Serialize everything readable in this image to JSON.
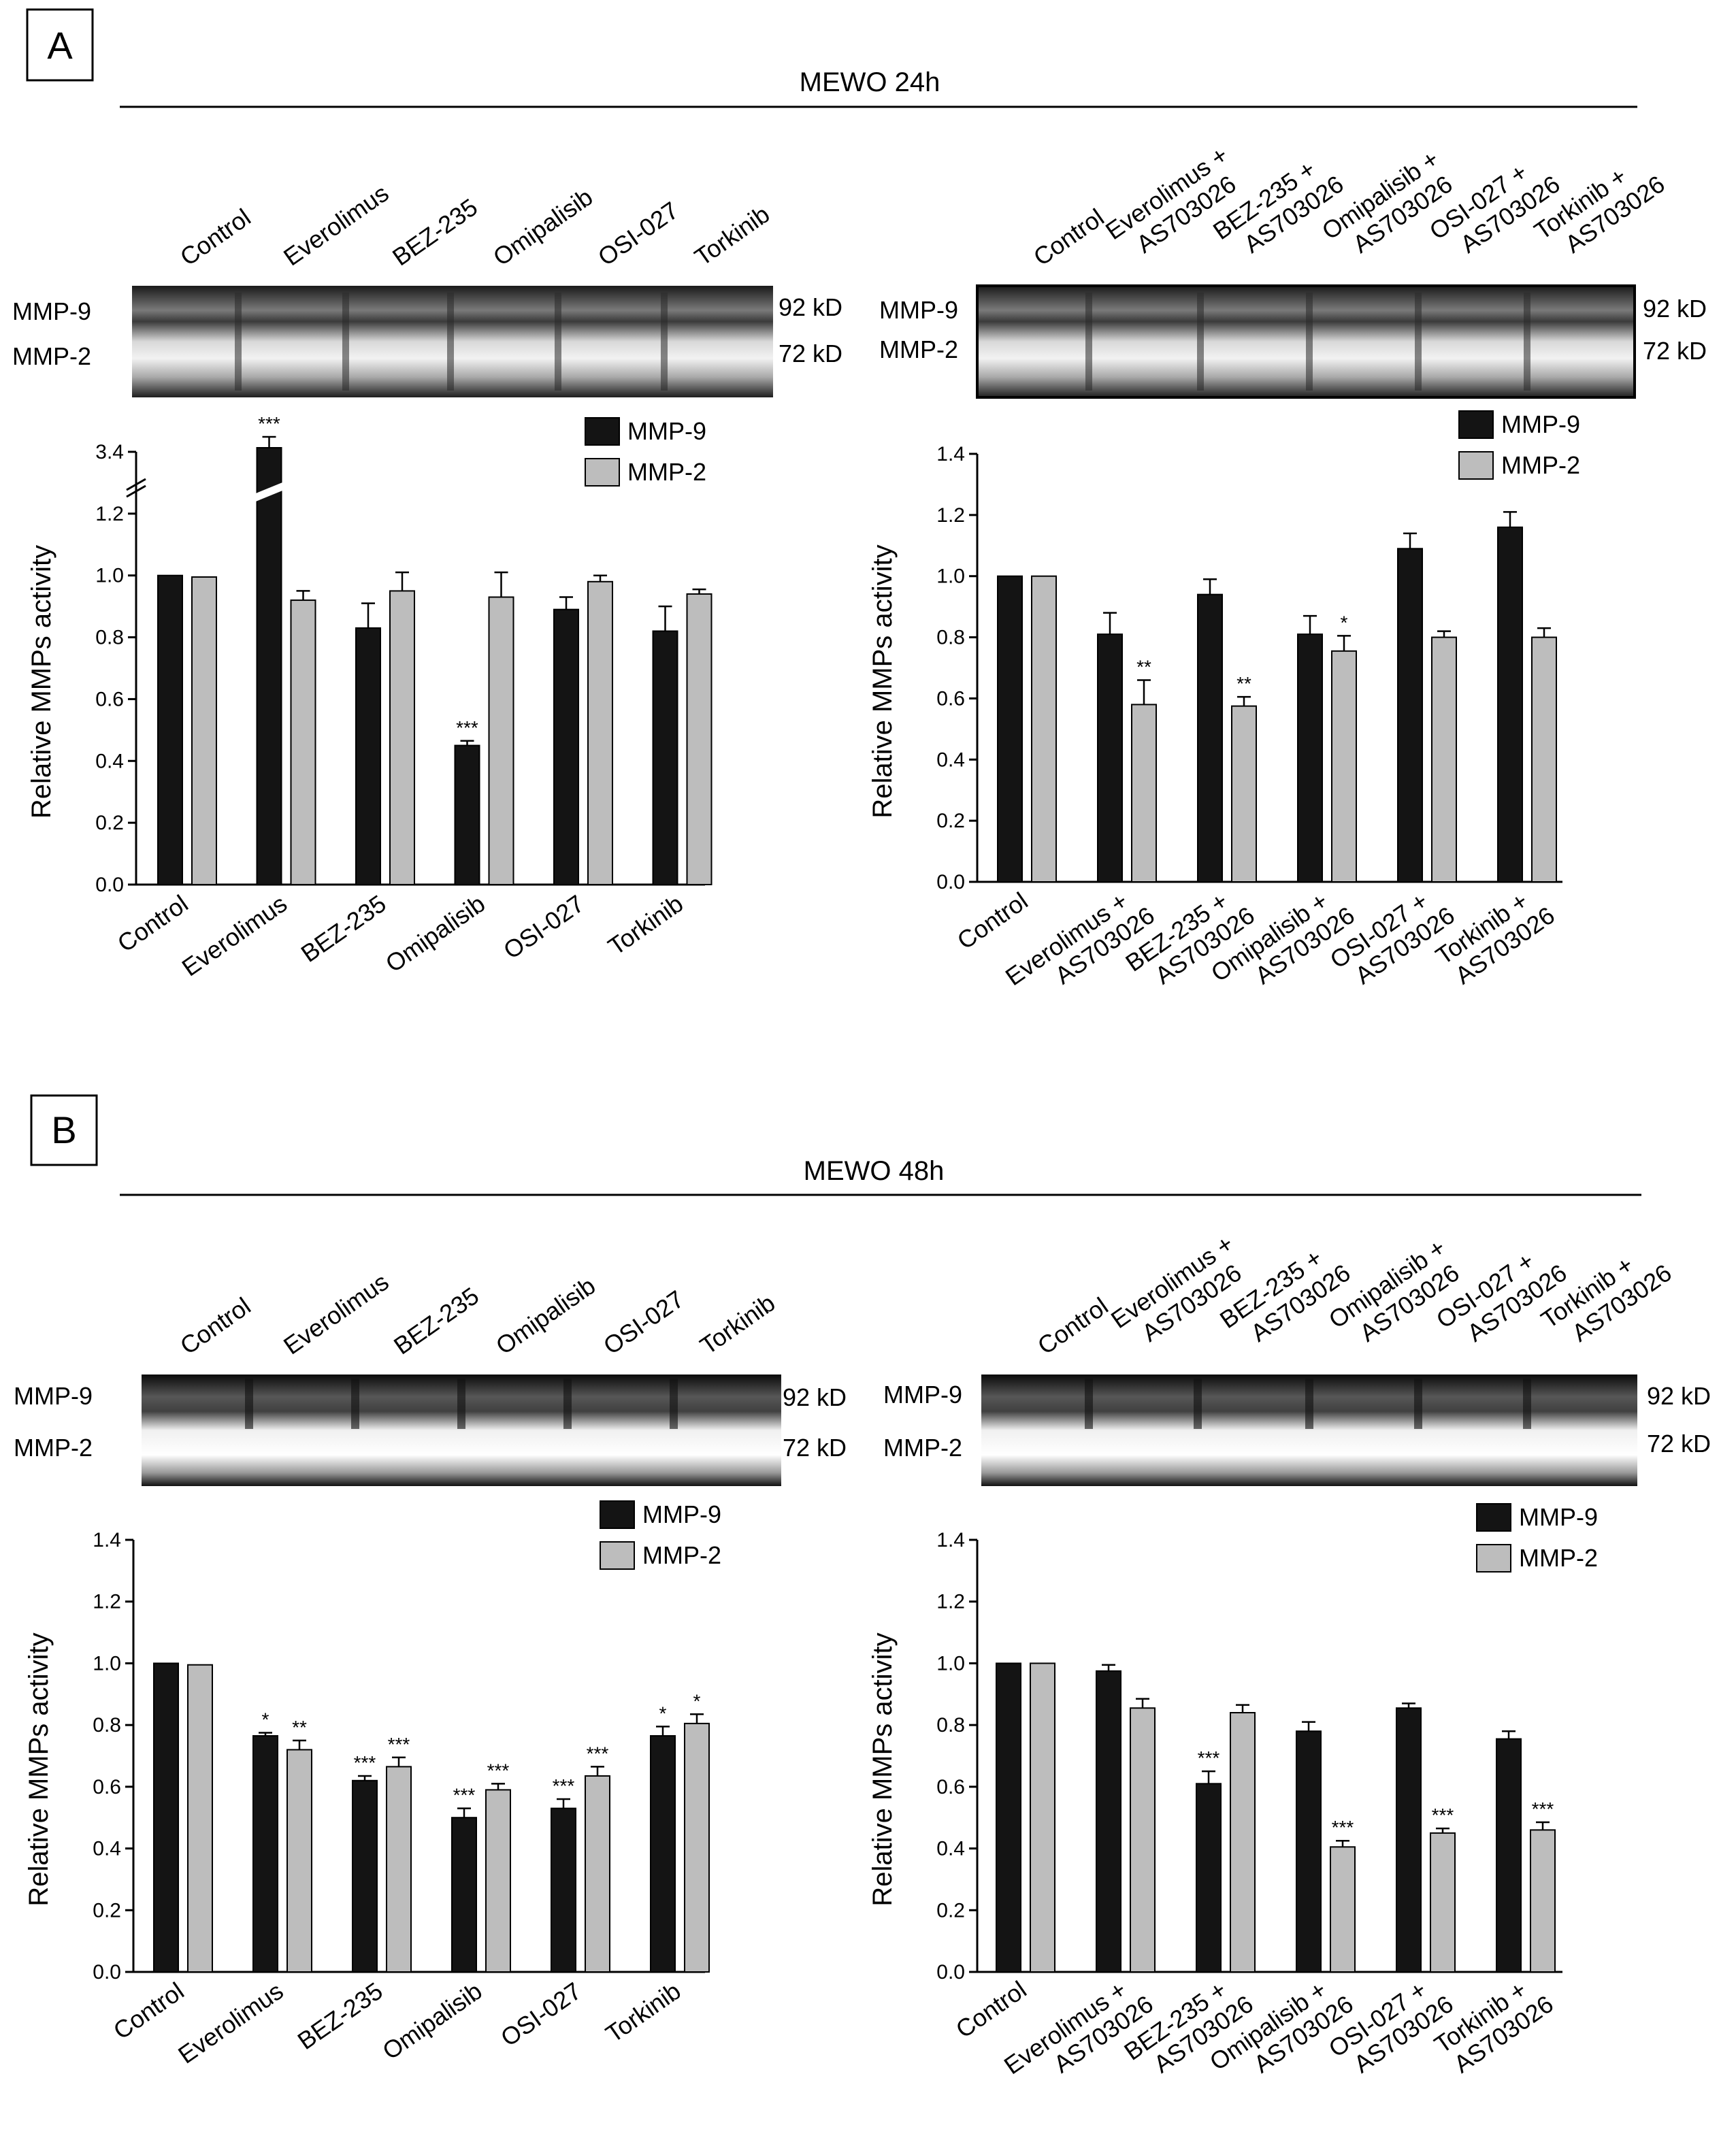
{
  "colors": {
    "mmp9": "#141414",
    "mmp2": "#bdbdbd",
    "axis": "#000000",
    "error": "#000000"
  },
  "panels": [
    {
      "letter": "A",
      "title": "MEWO 24h",
      "gels": [
        {
          "lanes": [
            "Control",
            "Everolimus",
            "BEZ-235",
            "Omipalisib",
            "OSI-027",
            "Torkinib"
          ],
          "band_left": [
            "MMP-9",
            "MMP-2"
          ],
          "band_right": [
            "92 kD",
            "72 kD"
          ]
        },
        {
          "lanes": [
            "Control",
            "Everolimus +\nAS703026",
            "BEZ-235 +\nAS703026",
            "Omipalisib +\nAS703026",
            "OSI-027 +\nAS703026",
            "Torkinib +\nAS703026"
          ],
          "band_left": [
            "MMP-9",
            "MMP-2"
          ],
          "band_right": [
            "92 kD",
            "72 kD"
          ]
        }
      ]
    },
    {
      "letter": "B",
      "title": "MEWO 48h",
      "gels": [
        {
          "lanes": [
            "Control",
            "Everolimus",
            "BEZ-235",
            "Omipalisib",
            "OSI-027",
            "Torkinib"
          ],
          "band_left": [
            "MMP-9",
            "MMP-2"
          ],
          "band_right": [
            "92 kD",
            "72 kD"
          ]
        },
        {
          "lanes": [
            "Control",
            "Everolimus +\nAS703026",
            "BEZ-235 +\nAS703026",
            "Omipalisib +\nAS703026",
            "OSI-027 +\nAS703026",
            "Torkinib +\nAS703026"
          ],
          "band_left": [
            "MMP-9",
            "MMP-2"
          ],
          "band_right": [
            "92 kD",
            "72 kD"
          ]
        }
      ]
    }
  ],
  "chart_data": [
    {
      "panel": "A",
      "type": "bar",
      "ylabel": "Relative MMPs activity",
      "ylim": [
        0,
        1.4
      ],
      "yticks": [
        0.0,
        0.2,
        0.4,
        0.6,
        0.8,
        1.0,
        1.2
      ],
      "axis_break": {
        "label": "3.4",
        "above": 1.2
      },
      "categories": [
        "Control",
        "Everolimus",
        "BEZ-235",
        "Omipalisib",
        "OSI-027",
        "Torkinib"
      ],
      "series": [
        {
          "name": "MMP-9",
          "values": [
            1.0,
            3.4,
            0.83,
            0.45,
            0.89,
            0.82
          ],
          "errors": [
            0,
            0.05,
            0.08,
            0.015,
            0.04,
            0.08
          ],
          "stars": [
            "",
            "***",
            "",
            "***",
            "",
            ""
          ]
        },
        {
          "name": "MMP-2",
          "values": [
            0.995,
            0.92,
            0.95,
            0.93,
            0.98,
            0.94
          ],
          "errors": [
            0,
            0.03,
            0.06,
            0.08,
            0.02,
            0.015
          ],
          "stars": [
            "",
            "",
            "",
            "",
            "",
            ""
          ]
        }
      ],
      "legend": [
        "MMP-9",
        "MMP-2"
      ],
      "legend_position": "top-right"
    },
    {
      "panel": "A",
      "type": "bar",
      "ylabel": "Relative MMPs activity",
      "ylim": [
        0,
        1.4
      ],
      "yticks": [
        0.0,
        0.2,
        0.4,
        0.6,
        0.8,
        1.0,
        1.2,
        1.4
      ],
      "categories": [
        "Control",
        "Everolimus +\nAS703026",
        "BEZ-235 +\nAS703026",
        "Omipalisib +\nAS703026",
        "OSI-027 +\nAS703026",
        "Torkinib +\nAS703026"
      ],
      "series": [
        {
          "name": "MMP-9",
          "values": [
            1.0,
            0.81,
            0.94,
            0.81,
            1.09,
            1.16
          ],
          "errors": [
            0,
            0.07,
            0.05,
            0.06,
            0.05,
            0.05
          ],
          "stars": [
            "",
            "",
            "",
            "",
            "",
            ""
          ]
        },
        {
          "name": "MMP-2",
          "values": [
            1.0,
            0.58,
            0.575,
            0.755,
            0.8,
            0.8
          ],
          "errors": [
            0,
            0.08,
            0.03,
            0.05,
            0.02,
            0.03
          ],
          "stars": [
            "",
            "**",
            "**",
            "*",
            "",
            ""
          ]
        }
      ],
      "legend": [
        "MMP-9",
        "MMP-2"
      ],
      "legend_position": "top-right"
    },
    {
      "panel": "B",
      "type": "bar",
      "ylabel": "Relative MMPs activity",
      "ylim": [
        0,
        1.4
      ],
      "yticks": [
        0.0,
        0.2,
        0.4,
        0.6,
        0.8,
        1.0,
        1.2,
        1.4
      ],
      "categories": [
        "Control",
        "Everolimus",
        "BEZ-235",
        "Omipalisib",
        "OSI-027",
        "Torkinib"
      ],
      "series": [
        {
          "name": "MMP-9",
          "values": [
            1.0,
            0.765,
            0.62,
            0.5,
            0.53,
            0.765
          ],
          "errors": [
            0,
            0.01,
            0.015,
            0.03,
            0.03,
            0.03
          ],
          "stars": [
            "",
            "*",
            "***",
            "***",
            "***",
            "*"
          ]
        },
        {
          "name": "MMP-2",
          "values": [
            0.995,
            0.72,
            0.665,
            0.59,
            0.635,
            0.805
          ],
          "errors": [
            0,
            0.03,
            0.03,
            0.02,
            0.03,
            0.03
          ],
          "stars": [
            "",
            "**",
            "***",
            "***",
            "***",
            "*"
          ]
        }
      ],
      "legend": [
        "MMP-9",
        "MMP-2"
      ],
      "legend_position": "top-right"
    },
    {
      "panel": "B",
      "type": "bar",
      "ylabel": "Relative MMPs activity",
      "ylim": [
        0,
        1.4
      ],
      "yticks": [
        0.0,
        0.2,
        0.4,
        0.6,
        0.8,
        1.0,
        1.2,
        1.4
      ],
      "categories": [
        "Control",
        "Everolimus +\nAS703026",
        "BEZ-235 +\nAS703026",
        "Omipalisib +\nAS703026",
        "OSI-027 +\nAS703026",
        "Torkinib +\nAS703026"
      ],
      "series": [
        {
          "name": "MMP-9",
          "values": [
            1.0,
            0.975,
            0.61,
            0.78,
            0.855,
            0.755
          ],
          "errors": [
            0,
            0.02,
            0.04,
            0.03,
            0.015,
            0.025
          ],
          "stars": [
            "",
            "",
            "***",
            "",
            "",
            ""
          ]
        },
        {
          "name": "MMP-2",
          "values": [
            1.0,
            0.855,
            0.84,
            0.405,
            0.45,
            0.46
          ],
          "errors": [
            0,
            0.03,
            0.025,
            0.02,
            0.015,
            0.025
          ],
          "stars": [
            "",
            "",
            "",
            "***",
            "***",
            "***"
          ]
        }
      ],
      "legend": [
        "MMP-9",
        "MMP-2"
      ],
      "legend_position": "top-right"
    }
  ]
}
